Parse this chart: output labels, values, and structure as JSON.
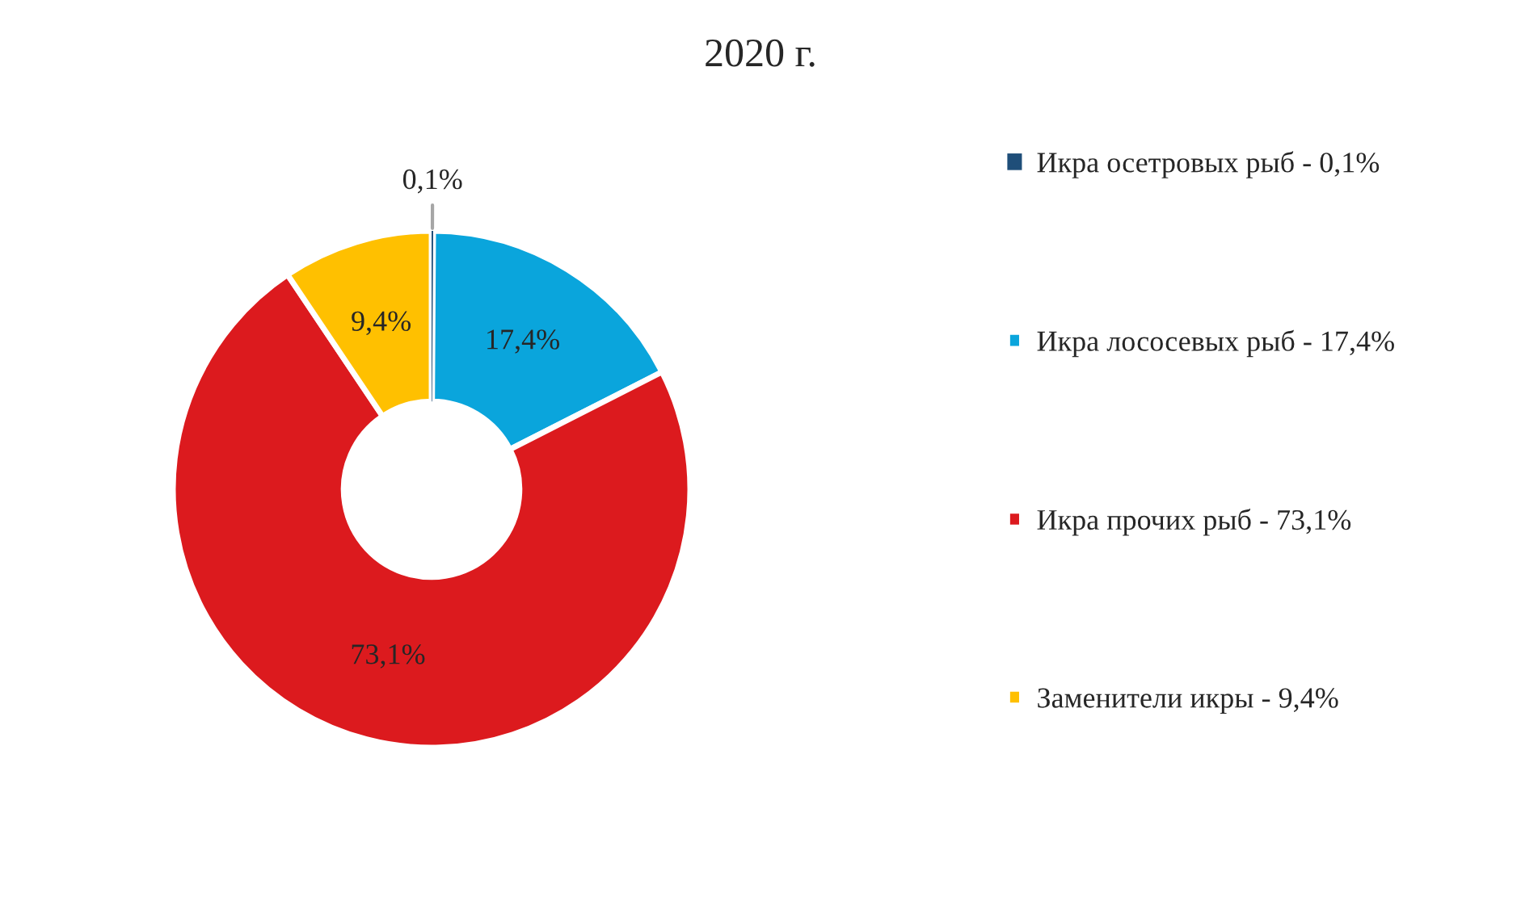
{
  "chart_data": {
    "type": "donut",
    "title": "2020 г.",
    "categories": [
      "Икра осетровых рыб - 0,1%",
      "Икра лососевых рыб - 17,4%",
      "Икра прочих рыб - 73,1%",
      "Заменители икры - 9,4%"
    ],
    "values": [
      0.1,
      17.4,
      73.1,
      9.4
    ],
    "colors": [
      "#1f4e79",
      "#0aa5dc",
      "#dc1a1e",
      "#ffc000"
    ],
    "value_labels": [
      "0,1%",
      "17,4%",
      "73,1%",
      "9,4%"
    ],
    "legend": "right"
  }
}
